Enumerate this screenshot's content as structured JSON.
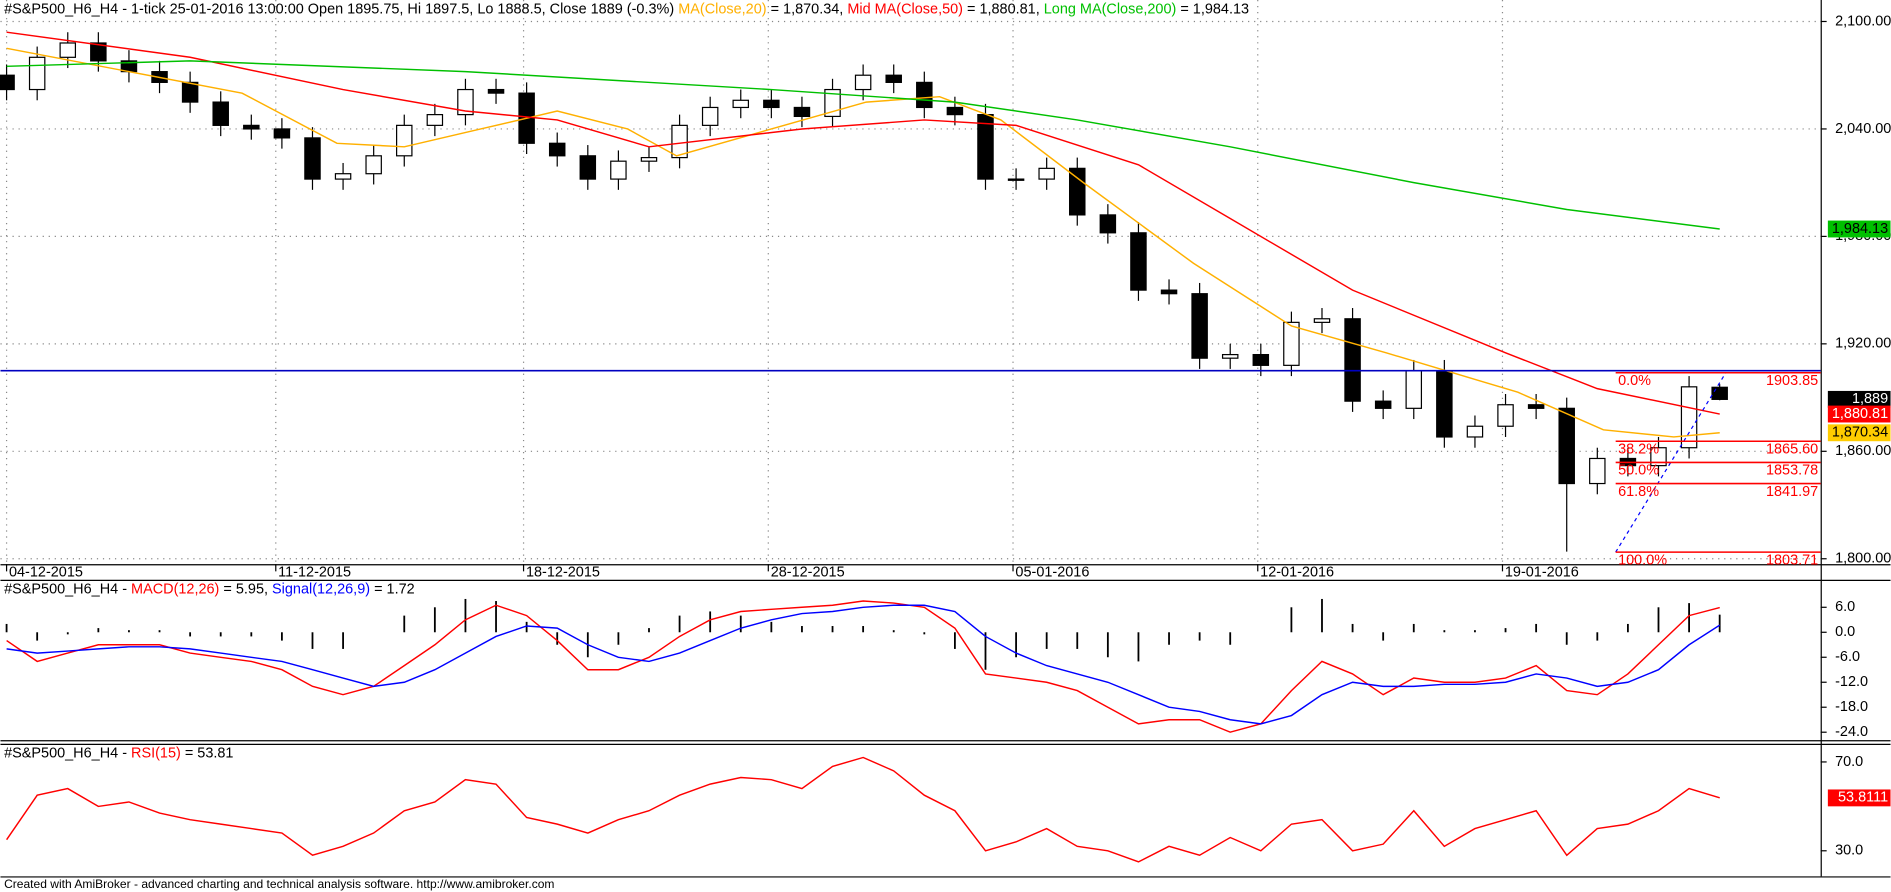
{
  "chart_data": [
    {
      "type": "candlestick",
      "title_parts": [
        {
          "text": "#S&P500_H6_H4 - 1-tick 25-01-2016 13:00:00 Open 1895.75, Hi 1897.5, Lo 1888.5, Close 1889 (-0.3%) ",
          "color": "#000000"
        },
        {
          "text": "MA(Close,20)",
          "color": "#ffb000"
        },
        {
          "text": " = 1,870.34, ",
          "color": "#000000"
        },
        {
          "text": "Mid MA(Close,50)",
          "color": "#ff0000"
        },
        {
          "text": " = 1,880.81, ",
          "color": "#000000"
        },
        {
          "text": "Long MA(Close,200)",
          "color": "#00c000"
        },
        {
          "text": " = 1,984.13",
          "color": "#000000"
        }
      ],
      "xlim": [
        -0.2,
        59.3
      ],
      "xticks": [
        {
          "value": 0,
          "label": "04-12-2015"
        },
        {
          "value": 8.8,
          "label": "11-12-2015"
        },
        {
          "value": 16.9,
          "label": "18-12-2015"
        },
        {
          "value": 24.9,
          "label": "28-12-2015"
        },
        {
          "value": 32.9,
          "label": "05-01-2016"
        },
        {
          "value": 40.9,
          "label": "12-01-2016"
        },
        {
          "value": 48.9,
          "label": "19-01-2016"
        }
      ],
      "ylim": [
        1797,
        2112
      ],
      "yticks": [
        {
          "value": 1800,
          "label": "1,800.00"
        },
        {
          "value": 1860,
          "label": "1,860.00"
        },
        {
          "value": 1920,
          "label": "1,920.00"
        },
        {
          "value": 1980,
          "label": "1,980.00"
        },
        {
          "value": 2040,
          "label": "2,040.00"
        },
        {
          "value": 2100,
          "label": "2,100.00"
        }
      ],
      "grid": true,
      "up_color": "#ffffff",
      "down_color": "#000000",
      "open": [
        2070,
        2062,
        2080,
        2088,
        2078,
        2072,
        2066,
        2055,
        2042,
        2040,
        2035,
        2012,
        2015,
        2025,
        2042,
        2048,
        2062,
        2060,
        2032,
        2025,
        2012,
        2022,
        2024,
        2042,
        2052,
        2056,
        2052,
        2047,
        2062,
        2070,
        2066,
        2052,
        2048,
        2012,
        2012,
        2018,
        1992,
        1982,
        1950,
        1948,
        1912,
        1914,
        1908,
        1932,
        1934,
        1888,
        1884,
        1905,
        1868,
        1874,
        1886,
        1884,
        1842,
        1856,
        1852,
        1862,
        1895.75
      ],
      "high": [
        2076,
        2086,
        2094,
        2094,
        2084,
        2078,
        2072,
        2061,
        2048,
        2046,
        2041,
        2021,
        2031,
        2048,
        2054,
        2068,
        2068,
        2066,
        2038,
        2031,
        2028,
        2030,
        2048,
        2058,
        2062,
        2062,
        2058,
        2068,
        2076,
        2076,
        2072,
        2058,
        2054,
        2018,
        2024,
        2024,
        1998,
        1988,
        1956,
        1954,
        1920,
        1920,
        1938,
        1940,
        1940,
        1894,
        1911,
        1911,
        1880,
        1892,
        1892,
        1890,
        1862,
        1862,
        1868,
        1902,
        1897.5
      ],
      "low": [
        2056,
        2056,
        2074,
        2072,
        2066,
        2060,
        2049,
        2036,
        2034,
        2029,
        2006,
        2006,
        2009,
        2019,
        2036,
        2042,
        2054,
        2026,
        2019,
        2006,
        2006,
        2016,
        2018,
        2036,
        2046,
        2046,
        2041,
        2041,
        2056,
        2060,
        2046,
        2042,
        2006,
        2006,
        2006,
        1986,
        1976,
        1944,
        1942,
        1906,
        1906,
        1902,
        1902,
        1926,
        1882,
        1878,
        1878,
        1862,
        1862,
        1868,
        1878,
        1804,
        1836,
        1846,
        1846,
        1856,
        1888.5
      ],
      "close": [
        2062,
        2080,
        2088,
        2078,
        2072,
        2066,
        2055,
        2042,
        2040,
        2035,
        2012,
        2015,
        2025,
        2042,
        2048,
        2062,
        2060,
        2032,
        2025,
        2012,
        2022,
        2024,
        2042,
        2052,
        2056,
        2052,
        2047,
        2062,
        2070,
        2066,
        2052,
        2048,
        2012,
        2012,
        2018,
        1992,
        1982,
        1950,
        1948,
        1912,
        1914,
        1908,
        1932,
        1934,
        1888,
        1884,
        1905,
        1868,
        1874,
        1886,
        1884,
        1842,
        1856,
        1852,
        1862,
        1896,
        1889
      ],
      "series": [
        {
          "color": "#ffb000",
          "x": [
            0,
            7.7,
            10.8,
            13,
            15.5,
            18,
            20.3,
            21.9,
            25,
            28.1,
            30.5,
            32.5,
            35.2,
            38.8,
            42,
            45.1,
            49.4,
            52.2,
            54.5,
            56
          ],
          "values": [
            2085,
            2060,
            2032,
            2030,
            2040,
            2050,
            2040,
            2025,
            2040,
            2055,
            2058,
            2045,
            2010,
            1965,
            1930,
            1915,
            1893,
            1872,
            1868,
            1870.34
          ]
        },
        {
          "color": "#ff0000",
          "x": [
            0,
            6,
            11,
            15,
            18,
            21,
            26,
            30,
            33,
            37,
            40,
            44,
            49,
            52,
            56
          ],
          "values": [
            2094,
            2080,
            2062,
            2050,
            2045,
            2030,
            2040,
            2045,
            2042,
            2020,
            1990,
            1950,
            1915,
            1895,
            1880.81
          ]
        },
        {
          "color": "#00c000",
          "x": [
            0,
            6,
            15,
            25,
            31,
            35,
            40,
            46,
            51,
            56
          ],
          "values": [
            2075,
            2078,
            2072,
            2062,
            2055,
            2045,
            2030,
            2010,
            1995,
            1984.13
          ]
        }
      ],
      "hline": {
        "value": 1905,
        "color": "#0000c0"
      },
      "fib": {
        "x": [
          52.6,
          56.2
        ],
        "values": [
          1803.71,
          1903.85
        ],
        "color": "#ff0000",
        "trend_color": "#0000ff",
        "levels": [
          {
            "ratio": "0.0%",
            "value": 1903.85,
            "label": "1903.85"
          },
          {
            "ratio": "38.2%",
            "value": 1865.6,
            "label": "1865.60"
          },
          {
            "ratio": "50.0%",
            "value": 1853.78,
            "label": "1853.78"
          },
          {
            "ratio": "61.8%",
            "value": 1841.97,
            "label": "1841.97"
          },
          {
            "ratio": "100.0%",
            "value": 1803.71,
            "label": "1803.71"
          }
        ]
      },
      "markers": [
        {
          "value": 1984.13,
          "label": "1,984.13",
          "color": "#00c000"
        },
        {
          "value": 1889,
          "label": "1,889",
          "color": "#000000"
        },
        {
          "value": 1880.81,
          "label": "1,880.81",
          "color": "#ff0000"
        },
        {
          "value": 1870.34,
          "label": "1,870.34",
          "color": "#ffcc00"
        }
      ]
    },
    {
      "type": "macd",
      "title_parts": [
        {
          "text": "#S&P500_H6_H4 - ",
          "color": "#000000"
        },
        {
          "text": "MACD(12,26)",
          "color": "#ff0000"
        },
        {
          "text": " = 5.95, ",
          "color": "#000000"
        },
        {
          "text": "Signal(12,26,9)",
          "color": "#0000ff"
        },
        {
          "text": " = 1.72",
          "color": "#000000"
        }
      ],
      "xlim": [
        -0.2,
        59.3
      ],
      "ylim": [
        -25.9,
        12.6
      ],
      "yticks": [
        {
          "value": 6,
          "label": "6.0"
        },
        {
          "value": 0,
          "label": "0.0"
        },
        {
          "value": -6,
          "label": "-6.0"
        },
        {
          "value": -12,
          "label": "-12.0"
        },
        {
          "value": -18,
          "label": "-18.0"
        },
        {
          "value": -24,
          "label": "-24.0"
        }
      ],
      "histogram": {
        "color": "#000000",
        "values": [
          2,
          -2,
          -0.5,
          1,
          0.5,
          0.5,
          -1,
          -1,
          -1,
          -2,
          -4,
          -4,
          0,
          4,
          6,
          8,
          7.5,
          2.5,
          -3,
          -6,
          -3,
          1,
          4,
          5,
          4,
          2.5,
          1.5,
          1.5,
          1.5,
          0.5,
          -0.5,
          -4,
          -9,
          -6,
          -4,
          -4,
          -6,
          -7,
          -3,
          -2,
          -3,
          0,
          6,
          8,
          2,
          -2,
          2,
          0.5,
          0.5,
          1,
          2,
          -3,
          -2,
          2,
          6,
          7,
          4.23
        ]
      },
      "series": [
        {
          "color": "#ff0000",
          "values": [
            -2,
            -7,
            -5,
            -3,
            -3,
            -3,
            -5,
            -6,
            -7,
            -9,
            -13,
            -15,
            -13,
            -8,
            -3,
            3,
            6.5,
            4,
            -2,
            -9,
            -9,
            -6,
            -1,
            3,
            5,
            5.5,
            6,
            6.5,
            7.5,
            7,
            6,
            1,
            -10,
            -11,
            -12,
            -14,
            -18,
            -22,
            -21,
            -21,
            -24,
            -22,
            -14,
            -7,
            -10,
            -15,
            -11,
            -12,
            -12,
            -11,
            -8,
            -14,
            -15,
            -10,
            -3,
            4,
            5.95
          ]
        },
        {
          "color": "#0000ff",
          "values": [
            -4,
            -5,
            -4.5,
            -4,
            -3.5,
            -3.5,
            -4,
            -5,
            -6,
            -7,
            -9,
            -11,
            -13,
            -12,
            -9,
            -5,
            -1,
            1.5,
            1,
            -3,
            -6,
            -7,
            -5,
            -2,
            1,
            3,
            4.5,
            5,
            6,
            6.5,
            6.5,
            5,
            -1,
            -5,
            -8,
            -10,
            -12,
            -15,
            -18,
            -19,
            -21,
            -22,
            -20,
            -15,
            -12,
            -13,
            -13,
            -12.5,
            -12.5,
            -12,
            -10,
            -11,
            -13,
            -12,
            -9,
            -3,
            1.72
          ]
        }
      ]
    },
    {
      "type": "line",
      "title_parts": [
        {
          "text": "#S&P500_H6_H4 - ",
          "color": "#000000"
        },
        {
          "text": "RSI(15)",
          "color": "#ff0000"
        },
        {
          "text": " = 53.81",
          "color": "#000000"
        }
      ],
      "xlim": [
        -0.2,
        59.3
      ],
      "ylim": [
        18.5,
        78.2
      ],
      "yticks": [
        {
          "value": 70,
          "label": "70.0"
        },
        {
          "value": 30,
          "label": "30.0"
        }
      ],
      "series": [
        {
          "color": "#ff0000",
          "values": [
            35,
            55,
            58,
            50,
            52,
            47,
            44,
            42,
            40,
            38,
            28,
            32,
            38,
            48,
            52,
            62,
            60,
            45,
            42,
            38,
            44,
            48,
            55,
            60,
            63,
            62,
            58,
            68,
            72,
            66,
            55,
            48,
            30,
            34,
            40,
            32,
            30,
            25,
            32,
            28,
            36,
            30,
            42,
            44,
            30,
            33,
            48,
            32,
            40,
            44,
            48,
            28,
            40,
            42,
            48,
            58,
            53.81
          ]
        }
      ],
      "markers": [
        {
          "value": 53.8111,
          "label": "53.8111",
          "color": "#ff0000"
        }
      ]
    }
  ],
  "footer": "Created with AmiBroker - advanced charting and technical analysis software. http://www.amibroker.com"
}
